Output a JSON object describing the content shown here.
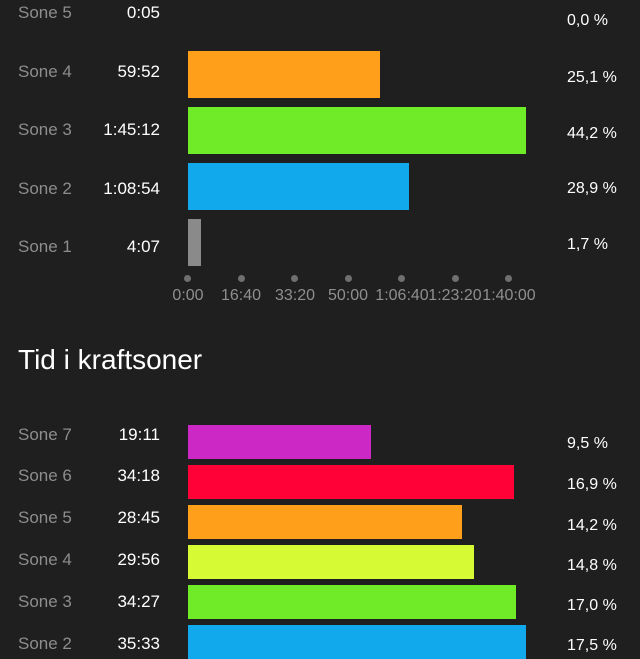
{
  "heart_zones": [
    {
      "label": "Sone 5",
      "time": "0:05",
      "pct": "0,0 %",
      "percent": 0.0,
      "color": "#f58c1f"
    },
    {
      "label": "Sone 4",
      "time": "59:52",
      "pct": "25,1 %",
      "percent": 25.1,
      "color": "#ff9f1a"
    },
    {
      "label": "Sone 3",
      "time": "1:45:12",
      "pct": "44,2 %",
      "percent": 44.2,
      "color": "#6feb27"
    },
    {
      "label": "Sone 2",
      "time": "1:08:54",
      "pct": "28,9 %",
      "percent": 28.9,
      "color": "#12a8ec"
    },
    {
      "label": "Sone 1",
      "time": "4:07",
      "pct": "1,7 %",
      "percent": 1.7,
      "color": "#8a8a8a"
    }
  ],
  "axis_ticks": [
    "0:00",
    "16:40",
    "33:20",
    "50:00",
    "1:06:40",
    "1:23:20",
    "1:40:00"
  ],
  "power_section": {
    "title": "Tid i kraftsoner",
    "zones": [
      {
        "label": "Sone 7",
        "time": "19:11",
        "pct": "9,5 %",
        "percent": 9.5,
        "color": "#cc28c6"
      },
      {
        "label": "Sone 6",
        "time": "34:18",
        "pct": "16,9 %",
        "percent": 16.9,
        "color": "#ff0037"
      },
      {
        "label": "Sone 5",
        "time": "28:45",
        "pct": "14,2 %",
        "percent": 14.2,
        "color": "#ff9f1a"
      },
      {
        "label": "Sone 4",
        "time": "29:56",
        "pct": "14,8 %",
        "percent": 14.8,
        "color": "#d6fb35"
      },
      {
        "label": "Sone 3",
        "time": "34:27",
        "pct": "17,0 %",
        "percent": 17.0,
        "color": "#6feb27"
      },
      {
        "label": "Sone 2",
        "time": "35:33",
        "pct": "17,5 %",
        "percent": 17.5,
        "color": "#12a8ec"
      }
    ]
  }
}
